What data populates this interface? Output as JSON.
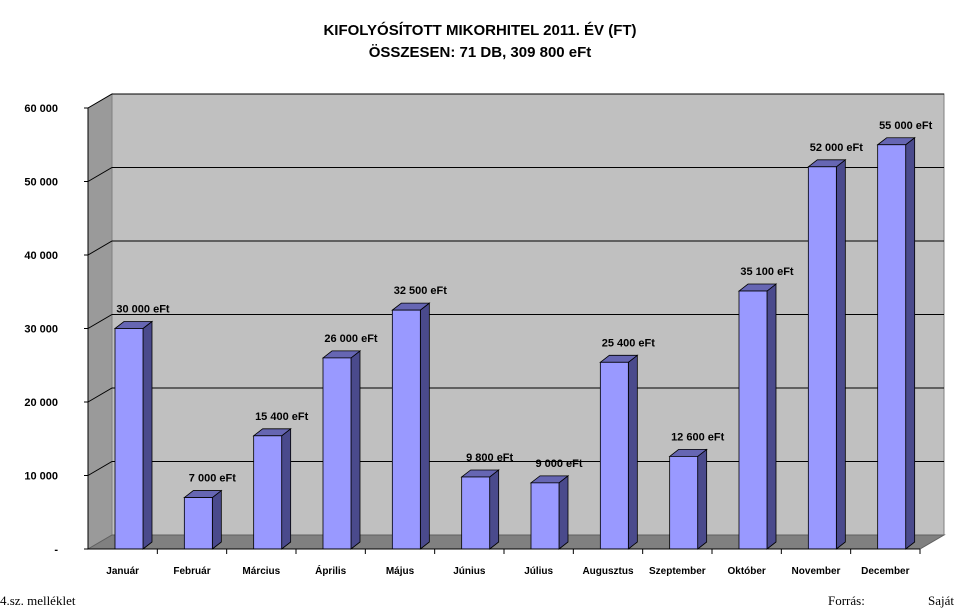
{
  "chart_data": {
    "type": "bar",
    "title": "KIFOLYÓSÍTOTT MIKORHITEL 2011. ÉV (FT)",
    "subtitle": "ÖSSZESEN: 71 DB, 309 800 eFt",
    "categories": [
      "Január",
      "Február",
      "Március",
      "Április",
      "Május",
      "Június",
      "Július",
      "Augusztus",
      "Szeptember",
      "Október",
      "November",
      "December"
    ],
    "values": [
      30000,
      7000,
      15400,
      26000,
      32500,
      9800,
      9000,
      25400,
      12600,
      35100,
      52000,
      55000
    ],
    "data_labels": [
      "30 000 eFt",
      "7 000 eFt",
      "15 400 eFt",
      "26 000 eFt",
      "32 500 eFt",
      "9 800 eFt",
      "9 000 eFt",
      "25 400 eFt",
      "12 600 eFt",
      "35 100 eFt",
      "52 000 eFt",
      "55 000 eFt"
    ],
    "yticks": [
      0,
      10000,
      20000,
      30000,
      40000,
      50000,
      60000
    ],
    "ytick_labels": [
      "-",
      "10 000",
      "20 000",
      "30 000",
      "40 000",
      "50 000",
      "60 000"
    ],
    "ylim": [
      0,
      60000
    ],
    "grid": true,
    "bar_color": "#9999ff"
  },
  "footer": {
    "left": "4.sz. melléklet",
    "source": "Forrás:",
    "right": "Saját"
  }
}
